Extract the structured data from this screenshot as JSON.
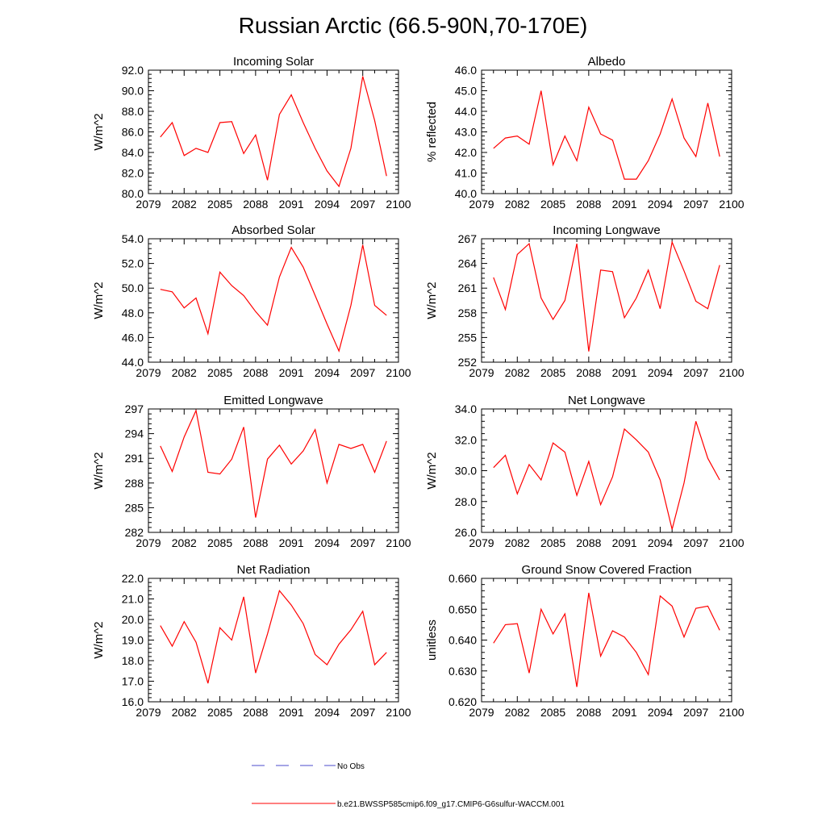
{
  "title": "Russian Arctic (66.5-90N,70-170E)",
  "x_ticks": [
    "2079",
    "2082",
    "2085",
    "2088",
    "2091",
    "2094",
    "2097",
    "2100"
  ],
  "legend": {
    "obs_label": "No Obs",
    "model_label": "b.e21.BWSSP585cmip6.f09_g17.CMIP6-G6sulfur-WACCM.001",
    "model_color": "#ff0000",
    "obs_color": "#4b4bcc"
  },
  "chart_data": [
    {
      "type": "line",
      "title": "Incoming Solar",
      "ylabel": "W/m^2",
      "xlim": [
        2079,
        2100
      ],
      "ylim": [
        80,
        92
      ],
      "yticks": [
        "80.0",
        "82.0",
        "84.0",
        "86.0",
        "88.0",
        "90.0",
        "92.0"
      ],
      "x": [
        2080,
        2081,
        2082,
        2083,
        2084,
        2085,
        2086,
        2087,
        2088,
        2089,
        2090,
        2091,
        2092,
        2093,
        2094,
        2095,
        2096,
        2097,
        2098,
        2099
      ],
      "values": [
        85.5,
        86.9,
        83.7,
        84.4,
        84.0,
        86.9,
        87.0,
        83.9,
        85.7,
        81.3,
        87.7,
        89.6,
        86.9,
        84.4,
        82.2,
        80.7,
        84.4,
        91.4,
        87.1,
        81.7
      ]
    },
    {
      "type": "line",
      "title": "Albedo",
      "ylabel": "% reflected",
      "xlim": [
        2079,
        2100
      ],
      "ylim": [
        40,
        46
      ],
      "yticks": [
        "40.0",
        "41.0",
        "42.0",
        "43.0",
        "44.0",
        "45.0",
        "46.0"
      ],
      "x": [
        2080,
        2081,
        2082,
        2083,
        2084,
        2085,
        2086,
        2087,
        2088,
        2089,
        2090,
        2091,
        2092,
        2093,
        2094,
        2095,
        2096,
        2097,
        2098,
        2099
      ],
      "values": [
        42.2,
        42.7,
        42.8,
        42.4,
        45.0,
        41.4,
        42.8,
        41.6,
        44.2,
        42.9,
        42.6,
        40.7,
        40.7,
        41.6,
        42.9,
        44.6,
        42.7,
        41.8,
        44.4,
        41.8
      ]
    },
    {
      "type": "line",
      "title": "Absorbed Solar",
      "ylabel": "W/m^2",
      "xlim": [
        2079,
        2100
      ],
      "ylim": [
        44,
        54
      ],
      "yticks": [
        "44.0",
        "46.0",
        "48.0",
        "50.0",
        "52.0",
        "54.0"
      ],
      "x": [
        2080,
        2081,
        2082,
        2083,
        2084,
        2085,
        2086,
        2087,
        2088,
        2089,
        2090,
        2091,
        2092,
        2093,
        2094,
        2095,
        2096,
        2097,
        2098,
        2099
      ],
      "values": [
        49.9,
        49.7,
        48.4,
        49.2,
        46.3,
        51.3,
        50.2,
        49.4,
        48.1,
        47.0,
        50.9,
        53.3,
        51.7,
        49.4,
        47.1,
        44.9,
        48.6,
        53.5,
        48.6,
        47.8
      ]
    },
    {
      "type": "line",
      "title": "Incoming Longwave",
      "ylabel": "W/m^2",
      "xlim": [
        2079,
        2100
      ],
      "ylim": [
        252,
        267
      ],
      "yticks": [
        "252",
        "255",
        "258",
        "261",
        "264",
        "267"
      ],
      "x": [
        2080,
        2081,
        2082,
        2083,
        2084,
        2085,
        2086,
        2087,
        2088,
        2089,
        2090,
        2091,
        2092,
        2093,
        2094,
        2095,
        2096,
        2097,
        2098,
        2099
      ],
      "values": [
        262.3,
        258.4,
        265.1,
        266.4,
        259.8,
        257.2,
        259.5,
        266.4,
        253.3,
        263.2,
        263.0,
        257.4,
        259.8,
        263.2,
        258.5,
        266.6,
        263.1,
        259.4,
        258.5,
        263.8
      ]
    },
    {
      "type": "line",
      "title": "Emitted Longwave",
      "ylabel": "W/m^2",
      "xlim": [
        2079,
        2100
      ],
      "ylim": [
        282,
        297
      ],
      "yticks": [
        "282",
        "285",
        "288",
        "291",
        "294",
        "297"
      ],
      "x": [
        2080,
        2081,
        2082,
        2083,
        2084,
        2085,
        2086,
        2087,
        2088,
        2089,
        2090,
        2091,
        2092,
        2093,
        2094,
        2095,
        2096,
        2097,
        2098,
        2099
      ],
      "values": [
        292.5,
        289.4,
        293.6,
        296.8,
        289.3,
        289.1,
        290.9,
        294.8,
        283.8,
        290.9,
        292.6,
        290.3,
        291.9,
        294.5,
        288.0,
        292.7,
        292.2,
        292.7,
        289.3,
        293.1
      ]
    },
    {
      "type": "line",
      "title": "Net Longwave",
      "ylabel": "W/m^2",
      "xlim": [
        2079,
        2100
      ],
      "ylim": [
        26,
        34
      ],
      "yticks": [
        "26.0",
        "28.0",
        "30.0",
        "32.0",
        "34.0"
      ],
      "x": [
        2080,
        2081,
        2082,
        2083,
        2084,
        2085,
        2086,
        2087,
        2088,
        2089,
        2090,
        2091,
        2092,
        2093,
        2094,
        2095,
        2096,
        2097,
        2098,
        2099
      ],
      "values": [
        30.2,
        31.0,
        28.5,
        30.4,
        29.4,
        31.8,
        31.2,
        28.4,
        30.6,
        27.8,
        29.6,
        32.7,
        32.0,
        31.2,
        29.4,
        26.2,
        29.2,
        33.2,
        30.8,
        29.4
      ]
    },
    {
      "type": "line",
      "title": "Net Radiation",
      "ylabel": "W/m^2",
      "xlim": [
        2079,
        2100
      ],
      "ylim": [
        16,
        22
      ],
      "yticks": [
        "16.0",
        "17.0",
        "18.0",
        "19.0",
        "20.0",
        "21.0",
        "22.0"
      ],
      "x": [
        2080,
        2081,
        2082,
        2083,
        2084,
        2085,
        2086,
        2087,
        2088,
        2089,
        2090,
        2091,
        2092,
        2093,
        2094,
        2095,
        2096,
        2097,
        2098,
        2099
      ],
      "values": [
        19.7,
        18.7,
        19.9,
        18.9,
        16.9,
        19.6,
        19.0,
        21.1,
        17.4,
        19.3,
        21.4,
        20.7,
        19.8,
        18.3,
        17.8,
        18.8,
        19.5,
        20.4,
        17.8,
        18.4
      ]
    },
    {
      "type": "line",
      "title": "Ground Snow Covered Fraction",
      "ylabel": "unitless",
      "xlim": [
        2079,
        2100
      ],
      "ylim": [
        0.62,
        0.66
      ],
      "yticks": [
        "0.620",
        "0.630",
        "0.640",
        "0.650",
        "0.660"
      ],
      "x": [
        2080,
        2081,
        2082,
        2083,
        2084,
        2085,
        2086,
        2087,
        2088,
        2089,
        2090,
        2091,
        2092,
        2093,
        2094,
        2095,
        2096,
        2097,
        2098,
        2099
      ],
      "values": [
        0.639,
        0.645,
        0.6453,
        0.6293,
        0.65,
        0.642,
        0.6485,
        0.6248,
        0.6553,
        0.6348,
        0.643,
        0.641,
        0.636,
        0.6288,
        0.6543,
        0.651,
        0.641,
        0.6503,
        0.651,
        0.6432
      ]
    }
  ]
}
